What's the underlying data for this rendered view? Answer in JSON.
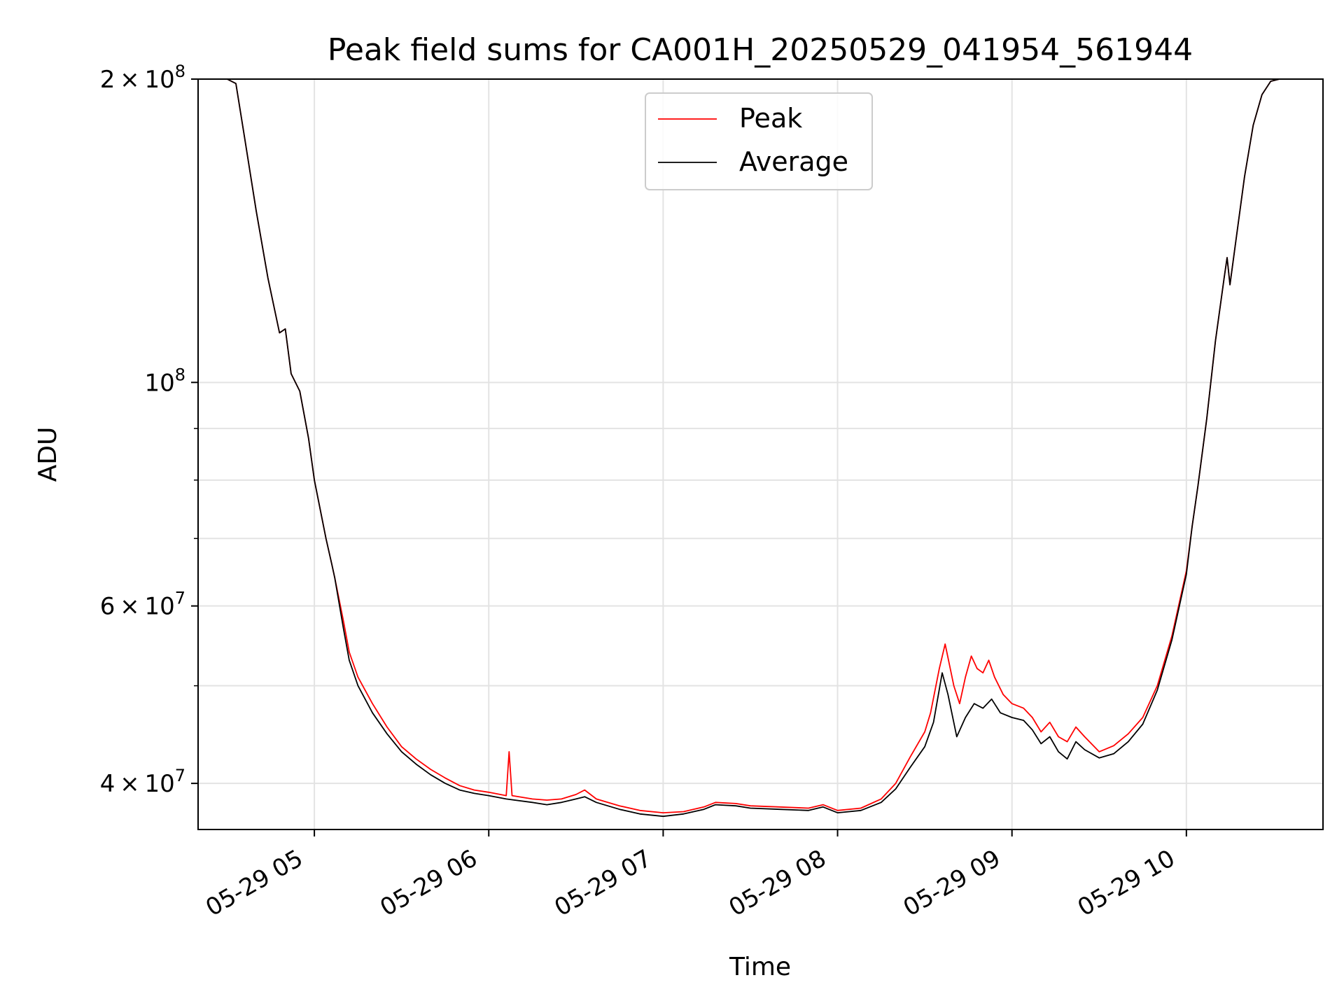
{
  "chart_data": {
    "type": "line",
    "title": "Peak field sums for CA001H_20250529_041954_561944",
    "xlabel": "Time",
    "ylabel": "ADU",
    "y_scale": "log",
    "ylim": [
      36000000,
      200000000
    ],
    "xlim": [
      "2025-05-29 04:20",
      "2025-05-29 10:47"
    ],
    "grid": true,
    "legend_position": "top-center",
    "x_ticks": [
      {
        "value": "2025-05-29 05:00",
        "label": "05-29 05"
      },
      {
        "value": "2025-05-29 06:00",
        "label": "05-29 06"
      },
      {
        "value": "2025-05-29 07:00",
        "label": "05-29 07"
      },
      {
        "value": "2025-05-29 08:00",
        "label": "05-29 08"
      },
      {
        "value": "2025-05-29 09:00",
        "label": "05-29 09"
      },
      {
        "value": "2025-05-29 10:00",
        "label": "05-29 10"
      }
    ],
    "y_ticks": [
      {
        "value": 40000000,
        "label_mantissa": "4 × 10",
        "label_exp": "7"
      },
      {
        "value": 60000000,
        "label_mantissa": "6 × 10",
        "label_exp": "7"
      },
      {
        "value": 100000000,
        "label_mantissa": "10",
        "label_exp": "8"
      },
      {
        "value": 200000000,
        "label_mantissa": "2 × 10",
        "label_exp": "8"
      }
    ],
    "y_minor_ticks": [
      50000000,
      70000000,
      80000000,
      90000000
    ],
    "series": [
      {
        "name": "Peak",
        "color": "#ff0000",
        "points": [
          [
            "2025-05-29 04:20",
            200000000
          ],
          [
            "2025-05-29 04:30",
            200000000
          ],
          [
            "2025-05-29 04:33",
            198000000
          ],
          [
            "2025-05-29 04:36",
            175000000
          ],
          [
            "2025-05-29 04:40",
            148000000
          ],
          [
            "2025-05-29 04:44",
            127000000
          ],
          [
            "2025-05-29 04:48",
            112000000
          ],
          [
            "2025-05-29 04:50",
            113000000
          ],
          [
            "2025-05-29 04:52",
            102000000
          ],
          [
            "2025-05-29 04:55",
            98000000
          ],
          [
            "2025-05-29 04:58",
            88000000
          ],
          [
            "2025-05-29 05:00",
            80000000
          ],
          [
            "2025-05-29 05:04",
            70000000
          ],
          [
            "2025-05-29 05:06",
            66000000
          ],
          [
            "2025-05-29 05:07",
            64000000
          ],
          [
            "2025-05-29 05:10",
            58000000
          ],
          [
            "2025-05-29 05:12",
            54000000
          ],
          [
            "2025-05-29 05:15",
            51000000
          ],
          [
            "2025-05-29 05:20",
            48000000
          ],
          [
            "2025-05-29 05:25",
            45500000
          ],
          [
            "2025-05-29 05:30",
            43500000
          ],
          [
            "2025-05-29 05:35",
            42300000
          ],
          [
            "2025-05-29 05:40",
            41300000
          ],
          [
            "2025-05-29 05:45",
            40500000
          ],
          [
            "2025-05-29 05:50",
            39800000
          ],
          [
            "2025-05-29 05:55",
            39400000
          ],
          [
            "2025-05-29 06:00",
            39200000
          ],
          [
            "2025-05-29 06:06",
            38900000
          ],
          [
            "2025-05-29 06:07",
            43000000
          ],
          [
            "2025-05-29 06:08",
            38900000
          ],
          [
            "2025-05-29 06:15",
            38600000
          ],
          [
            "2025-05-29 06:20",
            38500000
          ],
          [
            "2025-05-29 06:25",
            38600000
          ],
          [
            "2025-05-29 06:30",
            39000000
          ],
          [
            "2025-05-29 06:33",
            39400000
          ],
          [
            "2025-05-29 06:37",
            38600000
          ],
          [
            "2025-05-29 06:45",
            38000000
          ],
          [
            "2025-05-29 06:52",
            37600000
          ],
          [
            "2025-05-29 07:00",
            37400000
          ],
          [
            "2025-05-29 07:07",
            37500000
          ],
          [
            "2025-05-29 07:14",
            37900000
          ],
          [
            "2025-05-29 07:18",
            38300000
          ],
          [
            "2025-05-29 07:25",
            38200000
          ],
          [
            "2025-05-29 07:30",
            38000000
          ],
          [
            "2025-05-29 07:40",
            37900000
          ],
          [
            "2025-05-29 07:50",
            37800000
          ],
          [
            "2025-05-29 07:55",
            38100000
          ],
          [
            "2025-05-29 08:00",
            37600000
          ],
          [
            "2025-05-29 08:08",
            37800000
          ],
          [
            "2025-05-29 08:15",
            38600000
          ],
          [
            "2025-05-29 08:20",
            40000000
          ],
          [
            "2025-05-29 08:25",
            42500000
          ],
          [
            "2025-05-29 08:30",
            45000000
          ],
          [
            "2025-05-29 08:32",
            47000000
          ],
          [
            "2025-05-29 08:35",
            52000000
          ],
          [
            "2025-05-29 08:37",
            55000000
          ],
          [
            "2025-05-29 08:40",
            50000000
          ],
          [
            "2025-05-29 08:42",
            48000000
          ],
          [
            "2025-05-29 08:44",
            51000000
          ],
          [
            "2025-05-29 08:46",
            53500000
          ],
          [
            "2025-05-29 08:48",
            52000000
          ],
          [
            "2025-05-29 08:50",
            51500000
          ],
          [
            "2025-05-29 08:52",
            53000000
          ],
          [
            "2025-05-29 08:54",
            51000000
          ],
          [
            "2025-05-29 08:57",
            49000000
          ],
          [
            "2025-05-29 09:00",
            48000000
          ],
          [
            "2025-05-29 09:04",
            47500000
          ],
          [
            "2025-05-29 09:07",
            46500000
          ],
          [
            "2025-05-29 09:10",
            45000000
          ],
          [
            "2025-05-29 09:13",
            46000000
          ],
          [
            "2025-05-29 09:16",
            44500000
          ],
          [
            "2025-05-29 09:19",
            44000000
          ],
          [
            "2025-05-29 09:22",
            45500000
          ],
          [
            "2025-05-29 09:25",
            44500000
          ],
          [
            "2025-05-29 09:30",
            43000000
          ],
          [
            "2025-05-29 09:35",
            43600000
          ],
          [
            "2025-05-29 09:40",
            44800000
          ],
          [
            "2025-05-29 09:45",
            46500000
          ],
          [
            "2025-05-29 09:50",
            50000000
          ],
          [
            "2025-05-29 09:55",
            56000000
          ],
          [
            "2025-05-29 10:00",
            65000000
          ],
          [
            "2025-05-29 10:02",
            72000000
          ],
          [
            "2025-05-29 10:04",
            79000000
          ],
          [
            "2025-05-29 10:07",
            92000000
          ],
          [
            "2025-05-29 10:10",
            110000000
          ],
          [
            "2025-05-29 10:13",
            127000000
          ],
          [
            "2025-05-29 10:14",
            133000000
          ],
          [
            "2025-05-29 10:15",
            125000000
          ],
          [
            "2025-05-29 10:17",
            138000000
          ],
          [
            "2025-05-29 10:20",
            160000000
          ],
          [
            "2025-05-29 10:23",
            180000000
          ],
          [
            "2025-05-29 10:26",
            193000000
          ],
          [
            "2025-05-29 10:29",
            199000000
          ],
          [
            "2025-05-29 10:32",
            200000000
          ],
          [
            "2025-05-29 10:47",
            200000000
          ]
        ]
      },
      {
        "name": "Average",
        "color": "#000000",
        "points": [
          [
            "2025-05-29 04:20",
            200000000
          ],
          [
            "2025-05-29 04:30",
            200000000
          ],
          [
            "2025-05-29 04:33",
            198000000
          ],
          [
            "2025-05-29 04:36",
            175000000
          ],
          [
            "2025-05-29 04:40",
            148000000
          ],
          [
            "2025-05-29 04:44",
            127000000
          ],
          [
            "2025-05-29 04:48",
            112000000
          ],
          [
            "2025-05-29 04:50",
            113000000
          ],
          [
            "2025-05-29 04:52",
            102000000
          ],
          [
            "2025-05-29 04:55",
            98000000
          ],
          [
            "2025-05-29 04:58",
            88000000
          ],
          [
            "2025-05-29 05:00",
            80000000
          ],
          [
            "2025-05-29 05:04",
            70000000
          ],
          [
            "2025-05-29 05:06",
            66000000
          ],
          [
            "2025-05-29 05:07",
            64000000
          ],
          [
            "2025-05-29 05:10",
            57000000
          ],
          [
            "2025-05-29 05:12",
            53000000
          ],
          [
            "2025-05-29 05:15",
            50000000
          ],
          [
            "2025-05-29 05:20",
            47000000
          ],
          [
            "2025-05-29 05:25",
            44800000
          ],
          [
            "2025-05-29 05:30",
            43000000
          ],
          [
            "2025-05-29 05:35",
            41800000
          ],
          [
            "2025-05-29 05:40",
            40800000
          ],
          [
            "2025-05-29 05:45",
            40000000
          ],
          [
            "2025-05-29 05:50",
            39400000
          ],
          [
            "2025-05-29 05:55",
            39100000
          ],
          [
            "2025-05-29 06:00",
            38900000
          ],
          [
            "2025-05-29 06:06",
            38600000
          ],
          [
            "2025-05-29 06:15",
            38300000
          ],
          [
            "2025-05-29 06:20",
            38100000
          ],
          [
            "2025-05-29 06:25",
            38300000
          ],
          [
            "2025-05-29 06:30",
            38600000
          ],
          [
            "2025-05-29 06:33",
            38800000
          ],
          [
            "2025-05-29 06:37",
            38300000
          ],
          [
            "2025-05-29 06:45",
            37700000
          ],
          [
            "2025-05-29 06:52",
            37300000
          ],
          [
            "2025-05-29 07:00",
            37100000
          ],
          [
            "2025-05-29 07:07",
            37300000
          ],
          [
            "2025-05-29 07:14",
            37700000
          ],
          [
            "2025-05-29 07:18",
            38100000
          ],
          [
            "2025-05-29 07:25",
            38000000
          ],
          [
            "2025-05-29 07:30",
            37800000
          ],
          [
            "2025-05-29 07:40",
            37700000
          ],
          [
            "2025-05-29 07:50",
            37600000
          ],
          [
            "2025-05-29 07:55",
            37900000
          ],
          [
            "2025-05-29 08:00",
            37400000
          ],
          [
            "2025-05-29 08:08",
            37600000
          ],
          [
            "2025-05-29 08:15",
            38300000
          ],
          [
            "2025-05-29 08:20",
            39500000
          ],
          [
            "2025-05-29 08:25",
            41500000
          ],
          [
            "2025-05-29 08:30",
            43500000
          ],
          [
            "2025-05-29 08:33",
            46000000
          ],
          [
            "2025-05-29 08:36",
            51500000
          ],
          [
            "2025-05-29 08:38",
            49000000
          ],
          [
            "2025-05-29 08:41",
            44500000
          ],
          [
            "2025-05-29 08:44",
            46500000
          ],
          [
            "2025-05-29 08:47",
            48000000
          ],
          [
            "2025-05-29 08:50",
            47500000
          ],
          [
            "2025-05-29 08:53",
            48500000
          ],
          [
            "2025-05-29 08:56",
            47000000
          ],
          [
            "2025-05-29 09:00",
            46500000
          ],
          [
            "2025-05-29 09:04",
            46200000
          ],
          [
            "2025-05-29 09:07",
            45200000
          ],
          [
            "2025-05-29 09:10",
            43800000
          ],
          [
            "2025-05-29 09:13",
            44500000
          ],
          [
            "2025-05-29 09:16",
            43000000
          ],
          [
            "2025-05-29 09:19",
            42300000
          ],
          [
            "2025-05-29 09:22",
            44000000
          ],
          [
            "2025-05-29 09:25",
            43200000
          ],
          [
            "2025-05-29 09:30",
            42400000
          ],
          [
            "2025-05-29 09:35",
            42800000
          ],
          [
            "2025-05-29 09:40",
            44000000
          ],
          [
            "2025-05-29 09:45",
            45800000
          ],
          [
            "2025-05-29 09:50",
            49500000
          ],
          [
            "2025-05-29 09:55",
            55500000
          ],
          [
            "2025-05-29 10:00",
            64500000
          ],
          [
            "2025-05-29 10:02",
            72000000
          ],
          [
            "2025-05-29 10:04",
            79000000
          ],
          [
            "2025-05-29 10:07",
            92000000
          ],
          [
            "2025-05-29 10:10",
            110000000
          ],
          [
            "2025-05-29 10:13",
            127000000
          ],
          [
            "2025-05-29 10:14",
            133000000
          ],
          [
            "2025-05-29 10:15",
            125000000
          ],
          [
            "2025-05-29 10:17",
            138000000
          ],
          [
            "2025-05-29 10:20",
            160000000
          ],
          [
            "2025-05-29 10:23",
            180000000
          ],
          [
            "2025-05-29 10:26",
            193000000
          ],
          [
            "2025-05-29 10:29",
            199000000
          ],
          [
            "2025-05-29 10:32",
            200000000
          ],
          [
            "2025-05-29 10:47",
            200000000
          ]
        ]
      }
    ]
  }
}
